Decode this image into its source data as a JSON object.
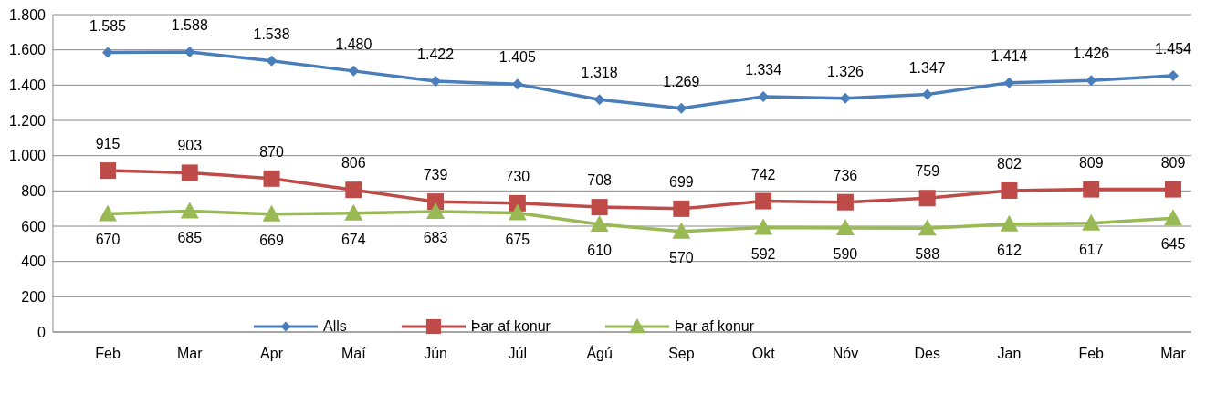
{
  "chart_data": {
    "type": "line",
    "categories": [
      "Feb",
      "Mar",
      "Apr",
      "Maí",
      "Jún",
      "Júl",
      "Ágú",
      "Sep",
      "Okt",
      "Nóv",
      "Des",
      "Jan",
      "Feb",
      "Mar"
    ],
    "series": [
      {
        "name": "Alls",
        "color": "#4a7ebb",
        "marker": "diamond",
        "values": [
          1585,
          1588,
          1538,
          1480,
          1422,
          1405,
          1318,
          1269,
          1334,
          1326,
          1347,
          1414,
          1426,
          1454
        ],
        "value_labels": [
          "1.585",
          "1.588",
          "1.538",
          "1.480",
          "1.422",
          "1.405",
          "1.318",
          "1.269",
          "1.334",
          "1.326",
          "1.347",
          "1.414",
          "1.426",
          "1.454"
        ]
      },
      {
        "name": "Þar af konur",
        "color": "#be4b48",
        "marker": "square",
        "values": [
          915,
          903,
          870,
          806,
          739,
          730,
          708,
          699,
          742,
          736,
          759,
          802,
          809,
          809
        ]
      },
      {
        "name": "Þar af konur",
        "color": "#98b954",
        "marker": "triangle",
        "values": [
          670,
          685,
          669,
          674,
          683,
          675,
          610,
          570,
          592,
          590,
          588,
          612,
          617,
          645
        ]
      }
    ],
    "ylim": [
      0,
      1800
    ],
    "yticks": [
      0,
      200,
      400,
      600,
      800,
      {
        "value": 1000,
        "label": "1.000"
      },
      {
        "value": 1200,
        "label": "1.200"
      },
      {
        "value": 1400,
        "label": "1.400"
      },
      {
        "value": 1600,
        "label": "1.600"
      },
      {
        "value": 1800,
        "label": "1.800"
      }
    ],
    "grid": "y",
    "legend": "bottom",
    "data_labels": true,
    "line_style": "solid"
  }
}
